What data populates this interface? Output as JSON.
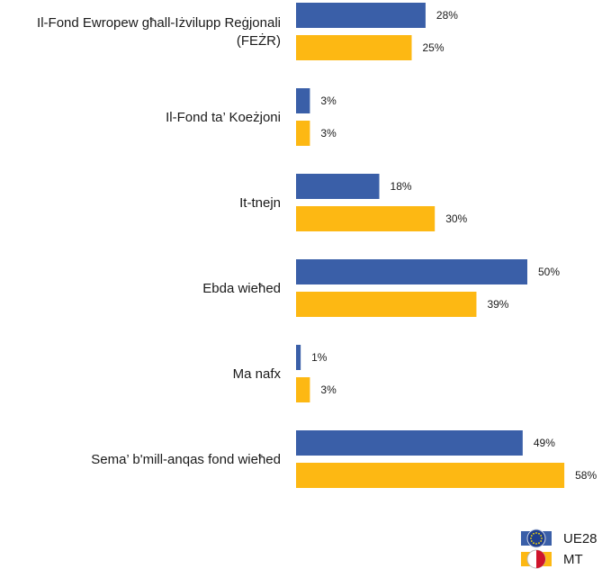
{
  "chart_data": {
    "type": "bar",
    "orientation": "horizontal",
    "categories": [
      [
        "Il-Fond Ewropew għall-Iżvilupp Reġjonali",
        "(FEŻR)"
      ],
      [
        "Il-Fond ta’ Koeżjoni"
      ],
      [
        "It-tnejn"
      ],
      [
        "Ebda wieħed"
      ],
      [
        "Ma nafx"
      ],
      [
        "Sema’ b'mill-anqas fond wieħed"
      ]
    ],
    "series": [
      {
        "name": "UE28",
        "color": "#3a5fa8",
        "icon": "eu-flag-icon",
        "values": [
          28,
          3,
          18,
          50,
          1,
          49
        ],
        "labels": [
          "28%",
          "3%",
          "18%",
          "50%",
          "1%",
          "49%"
        ]
      },
      {
        "name": "MT",
        "color": "#fdb813",
        "icon": "malta-flag-icon",
        "values": [
          25,
          3,
          30,
          39,
          3,
          58
        ],
        "labels": [
          "25%",
          "3%",
          "30%",
          "39%",
          "3%",
          "58%"
        ]
      }
    ],
    "xlim": [
      0,
      100
    ],
    "grid": false,
    "legend_position": "bottom-right",
    "title": "",
    "xlabel": "",
    "ylabel": ""
  }
}
